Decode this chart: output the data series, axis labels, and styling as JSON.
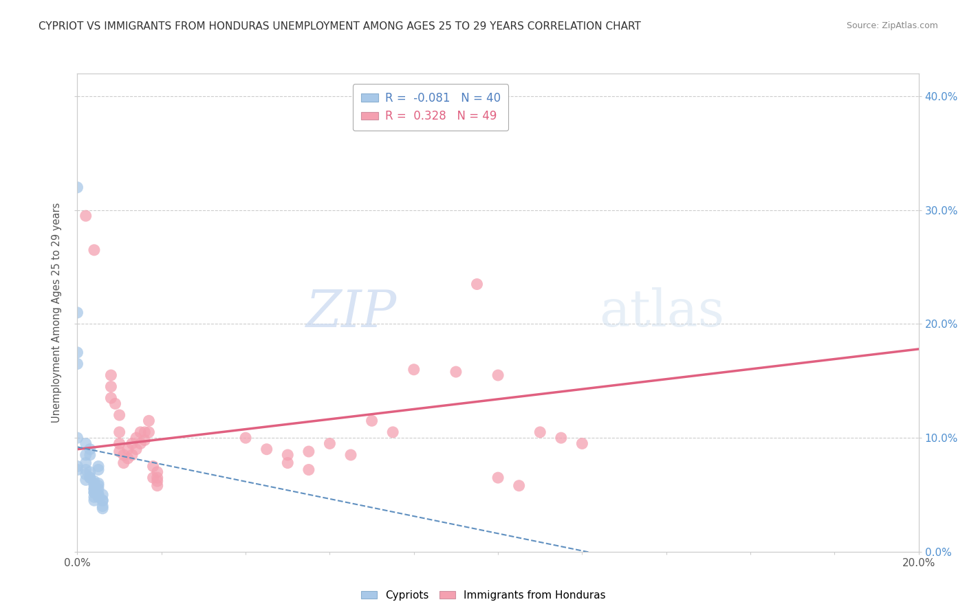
{
  "title": "CYPRIOT VS IMMIGRANTS FROM HONDURAS UNEMPLOYMENT AMONG AGES 25 TO 29 YEARS CORRELATION CHART",
  "source": "Source: ZipAtlas.com",
  "legend_cypriot": "Cypriots",
  "legend_honduras": "Immigrants from Honduras",
  "R_cypriot": -0.081,
  "N_cypriot": 40,
  "R_honduras": 0.328,
  "N_honduras": 49,
  "xlim": [
    0.0,
    0.2
  ],
  "ylim": [
    -0.02,
    0.42
  ],
  "plot_ylim": [
    0.0,
    0.42
  ],
  "cypriot_color": "#a8c8e8",
  "honduras_color": "#f4a0b0",
  "cypriot_line_color": "#6090c0",
  "honduras_line_color": "#e06080",
  "watermark_zip": "ZIP",
  "watermark_atlas": "atlas",
  "cypriot_points": [
    [
      0.0,
      0.32
    ],
    [
      0.0,
      0.21
    ],
    [
      0.0,
      0.175
    ],
    [
      0.0,
      0.165
    ],
    [
      0.0,
      0.1
    ],
    [
      0.002,
      0.095
    ],
    [
      0.002,
      0.085
    ],
    [
      0.002,
      0.078
    ],
    [
      0.002,
      0.072
    ],
    [
      0.002,
      0.068
    ],
    [
      0.002,
      0.063
    ],
    [
      0.003,
      0.07
    ],
    [
      0.003,
      0.065
    ],
    [
      0.003,
      0.09
    ],
    [
      0.003,
      0.085
    ],
    [
      0.003,
      0.065
    ],
    [
      0.004,
      0.062
    ],
    [
      0.004,
      0.055
    ],
    [
      0.004,
      0.06
    ],
    [
      0.004,
      0.058
    ],
    [
      0.004,
      0.052
    ],
    [
      0.004,
      0.055
    ],
    [
      0.004,
      0.048
    ],
    [
      0.004,
      0.052
    ],
    [
      0.004,
      0.045
    ],
    [
      0.005,
      0.05
    ],
    [
      0.005,
      0.048
    ],
    [
      0.005,
      0.06
    ],
    [
      0.005,
      0.055
    ],
    [
      0.005,
      0.058
    ],
    [
      0.005,
      0.05
    ],
    [
      0.005,
      0.075
    ],
    [
      0.005,
      0.072
    ],
    [
      0.006,
      0.045
    ],
    [
      0.006,
      0.04
    ],
    [
      0.006,
      0.05
    ],
    [
      0.006,
      0.038
    ],
    [
      0.006,
      0.045
    ],
    [
      0.0,
      0.075
    ],
    [
      0.0,
      0.072
    ]
  ],
  "honduras_points": [
    [
      0.002,
      0.295
    ],
    [
      0.004,
      0.265
    ],
    [
      0.008,
      0.155
    ],
    [
      0.008,
      0.145
    ],
    [
      0.008,
      0.135
    ],
    [
      0.009,
      0.13
    ],
    [
      0.01,
      0.12
    ],
    [
      0.01,
      0.095
    ],
    [
      0.01,
      0.105
    ],
    [
      0.01,
      0.088
    ],
    [
      0.011,
      0.085
    ],
    [
      0.011,
      0.078
    ],
    [
      0.012,
      0.09
    ],
    [
      0.012,
      0.082
    ],
    [
      0.013,
      0.095
    ],
    [
      0.013,
      0.085
    ],
    [
      0.014,
      0.1
    ],
    [
      0.014,
      0.09
    ],
    [
      0.015,
      0.105
    ],
    [
      0.015,
      0.095
    ],
    [
      0.016,
      0.105
    ],
    [
      0.016,
      0.098
    ],
    [
      0.017,
      0.115
    ],
    [
      0.017,
      0.105
    ],
    [
      0.018,
      0.075
    ],
    [
      0.018,
      0.065
    ],
    [
      0.019,
      0.058
    ],
    [
      0.019,
      0.07
    ],
    [
      0.019,
      0.065
    ],
    [
      0.019,
      0.062
    ],
    [
      0.04,
      0.1
    ],
    [
      0.045,
      0.09
    ],
    [
      0.05,
      0.085
    ],
    [
      0.05,
      0.078
    ],
    [
      0.055,
      0.088
    ],
    [
      0.055,
      0.072
    ],
    [
      0.06,
      0.095
    ],
    [
      0.065,
      0.085
    ],
    [
      0.07,
      0.115
    ],
    [
      0.075,
      0.105
    ],
    [
      0.08,
      0.16
    ],
    [
      0.09,
      0.158
    ],
    [
      0.095,
      0.235
    ],
    [
      0.1,
      0.155
    ],
    [
      0.1,
      0.065
    ],
    [
      0.105,
      0.058
    ],
    [
      0.11,
      0.105
    ],
    [
      0.115,
      0.1
    ],
    [
      0.12,
      0.095
    ]
  ],
  "cypriot_line": [
    0.0,
    0.092,
    0.2,
    -0.06
  ],
  "honduras_line": [
    0.0,
    0.09,
    0.2,
    0.178
  ]
}
